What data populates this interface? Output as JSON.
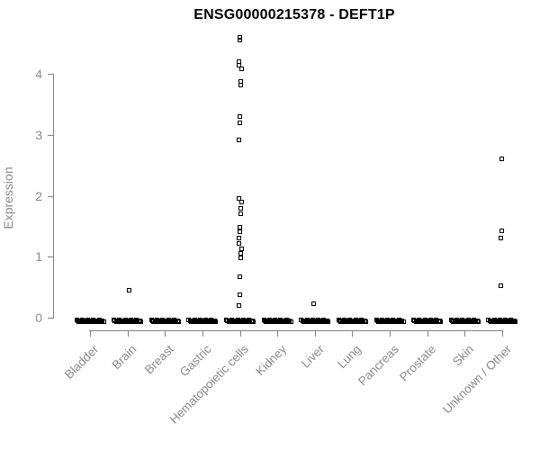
{
  "chart_data": {
    "type": "scatter",
    "subtype": "strip-plot-by-category",
    "title": "ENSG00000215378 - DEFT1P",
    "xlabel": "",
    "ylabel": "Expression",
    "ylim": [
      0,
      4.8
    ],
    "yticks": [
      0,
      1,
      2,
      3,
      4
    ],
    "grid": false,
    "legend": "none",
    "marker": "open-square",
    "colors": {
      "marker": "#000000",
      "axis_line": "#808080",
      "axis_text": "#8a8a8a",
      "title_text": "#000000",
      "background": "#ffffff"
    },
    "categories": [
      {
        "label": "Bladder",
        "nonzero_values": [],
        "zero_cluster": true
      },
      {
        "label": "Brain",
        "nonzero_values": [
          0.45
        ],
        "zero_cluster": true
      },
      {
        "label": "Breast",
        "nonzero_values": [],
        "zero_cluster": true
      },
      {
        "label": "Gastric",
        "nonzero_values": [],
        "zero_cluster": true
      },
      {
        "label": "Hematopoietic cells",
        "nonzero_values": [
          4.6,
          4.55,
          4.2,
          4.14,
          4.08,
          3.88,
          3.81,
          3.3,
          3.2,
          2.92,
          1.95,
          1.89,
          1.8,
          1.71,
          1.49,
          1.41,
          1.31,
          1.22,
          1.13,
          1.05,
          0.98,
          0.67,
          0.38,
          0.2
        ],
        "zero_cluster": true
      },
      {
        "label": "Kidney",
        "nonzero_values": [],
        "zero_cluster": true
      },
      {
        "label": "Liver",
        "nonzero_values": [
          0.23
        ],
        "zero_cluster": true
      },
      {
        "label": "Lung",
        "nonzero_values": [],
        "zero_cluster": true
      },
      {
        "label": "Pancreas",
        "nonzero_values": [],
        "zero_cluster": true
      },
      {
        "label": "Prostate",
        "nonzero_values": [],
        "zero_cluster": true
      },
      {
        "label": "Skin",
        "nonzero_values": [],
        "zero_cluster": true
      },
      {
        "label": "Unknown / Other",
        "nonzero_values": [
          2.6,
          1.42,
          1.3,
          0.53
        ],
        "zero_cluster": true
      }
    ],
    "annotation": "thick black bar at y=0 in every category is a dense cluster of overlapping points with expression 0"
  }
}
